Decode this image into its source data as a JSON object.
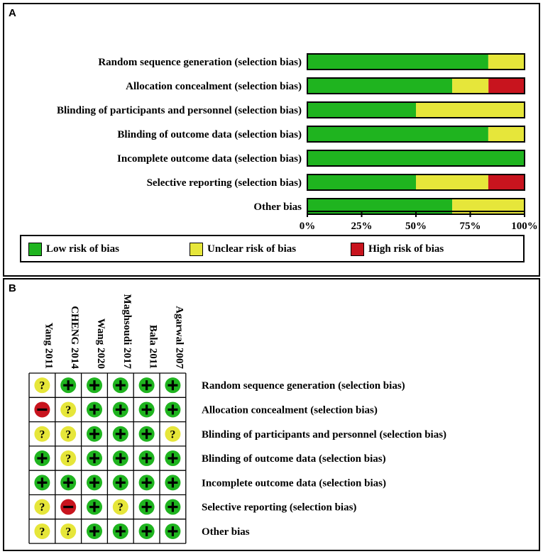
{
  "panel_a_label": "A",
  "panel_b_label": "B",
  "colors": {
    "low": "#1fb41f",
    "unclear": "#e6e63a",
    "high": "#c8141e"
  },
  "chart_data": [
    {
      "type": "bar",
      "orientation": "horizontal-stacked",
      "categories": [
        "Random sequence generation (selection bias)",
        "Allocation concealment (selection bias)",
        "Blinding of participants and personnel (selection bias)",
        "Blinding of outcome data (selection bias)",
        "Incomplete outcome data (selection bias)",
        "Selective reporting (selection bias)",
        "Other bias"
      ],
      "series": [
        {
          "name": "Low risk of bias",
          "values": [
            83.3,
            66.7,
            50,
            83.3,
            100,
            50,
            66.7
          ]
        },
        {
          "name": "Unclear risk of bias",
          "values": [
            16.7,
            16.7,
            50,
            16.7,
            0,
            33.3,
            33.3
          ]
        },
        {
          "name": "High risk of bias",
          "values": [
            0,
            16.7,
            0,
            0,
            0,
            16.7,
            0
          ]
        }
      ],
      "xlim": [
        0,
        100
      ],
      "xticks": [
        "0%",
        "25%",
        "50%",
        "75%",
        "100%"
      ],
      "legend": [
        "Low risk of bias",
        "Unclear risk of bias",
        "High risk of bias"
      ]
    },
    {
      "type": "table",
      "studies": [
        "Yang 2011",
        "CHENG 2014",
        "Wang 2020",
        "Maghsoudi 2017",
        "Bala 2011",
        "Agarwal 2007"
      ],
      "domains": [
        "Random sequence generation (selection bias)",
        "Allocation concealment (selection bias)",
        "Blinding of participants and personnel (selection bias)",
        "Blinding of outcome data (selection bias)",
        "Incomplete outcome data (selection bias)",
        "Selective reporting (selection bias)",
        "Other bias"
      ],
      "judgements": [
        [
          "?",
          "+",
          "+",
          "+",
          "+",
          "+"
        ],
        [
          "-",
          "?",
          "+",
          "+",
          "+",
          "+"
        ],
        [
          "?",
          "?",
          "+",
          "+",
          "+",
          "?"
        ],
        [
          "+",
          "?",
          "+",
          "+",
          "+",
          "+"
        ],
        [
          "+",
          "+",
          "+",
          "+",
          "+",
          "+"
        ],
        [
          "?",
          "-",
          "+",
          "?",
          "+",
          "+"
        ],
        [
          "?",
          "?",
          "+",
          "+",
          "+",
          "+"
        ]
      ]
    }
  ]
}
